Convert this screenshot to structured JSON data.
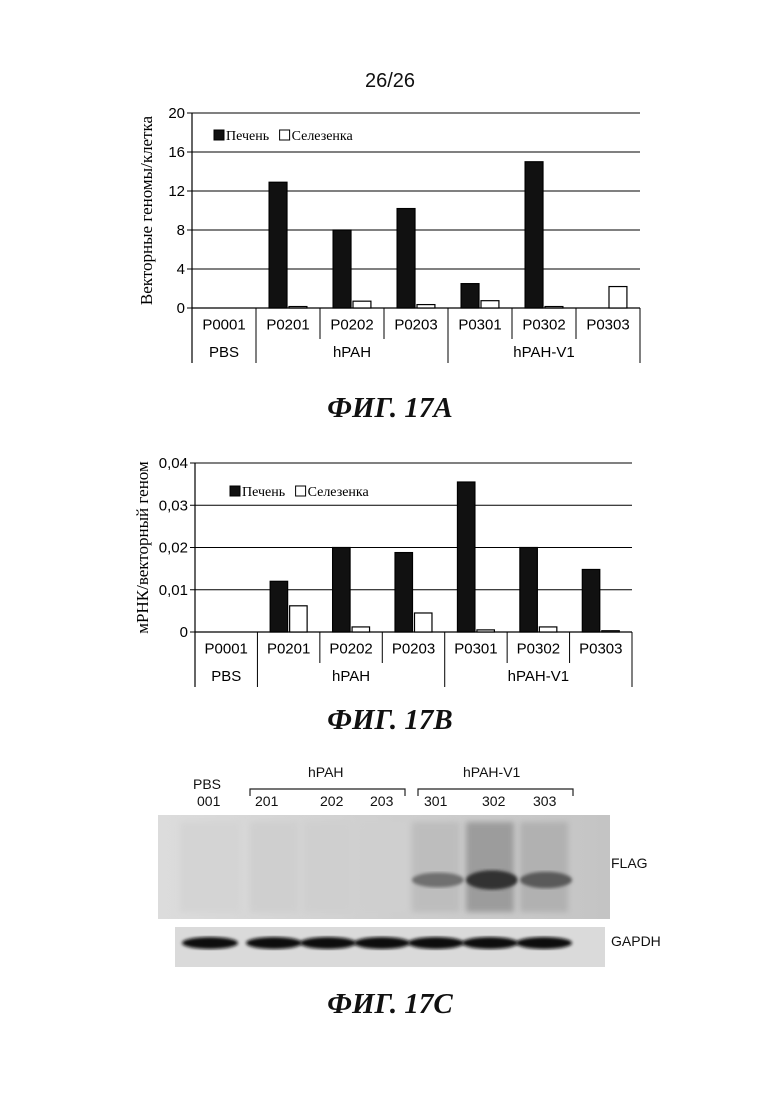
{
  "page_number": "26/26",
  "figures": {
    "a": {
      "caption": "ФИГ. 17А"
    },
    "b": {
      "caption": "ФИГ. 17В"
    },
    "c": {
      "caption": "ФИГ. 17С",
      "lane_header": {
        "pbs_line1": "PBS",
        "pbs_line2": "001",
        "group1": "hPAH",
        "group2": "hPAH-V1"
      },
      "lanes": [
        "201",
        "202",
        "203",
        "301",
        "302",
        "303"
      ],
      "bands": {
        "top_label": "FLAG",
        "bottom_label": "GAPDH"
      },
      "flag_intensity": [
        0.05,
        0.05,
        0.05,
        0.35,
        0.9,
        0.55
      ]
    }
  },
  "chart_data": [
    {
      "type": "bar",
      "ylabel": "Векторные геномы/клетка",
      "ylim": [
        0,
        20
      ],
      "yticks": [
        "0",
        "4",
        "8",
        "12",
        "16",
        "20"
      ],
      "grid": true,
      "legend_position": "top-left",
      "categories": [
        "P0001",
        "P0201",
        "P0202",
        "P0203",
        "P0301",
        "P0302",
        "P0303"
      ],
      "groups": [
        {
          "label": "PBS",
          "span": 1
        },
        {
          "label": "hPAH",
          "span": 3
        },
        {
          "label": "hPAH-V1",
          "span": 3
        }
      ],
      "series": [
        {
          "name": "Печень",
          "color": "#111111",
          "values": [
            0,
            12.9,
            8.0,
            10.2,
            2.5,
            15.0,
            0
          ]
        },
        {
          "name": "Селезенка",
          "color": "#ffffff",
          "values": [
            0,
            0.15,
            0.7,
            0.35,
            0.75,
            0.15,
            2.2
          ]
        }
      ]
    },
    {
      "type": "bar",
      "ylabel": "мРНК/векторный геном",
      "ylim": [
        0,
        0.04
      ],
      "yticks": [
        "0",
        "0,01",
        "0,02",
        "0,03",
        "0,04"
      ],
      "grid": true,
      "legend_position": "top-left",
      "categories": [
        "P0001",
        "P0201",
        "P0202",
        "P0203",
        "P0301",
        "P0302",
        "P0303"
      ],
      "groups": [
        {
          "label": "PBS",
          "span": 1
        },
        {
          "label": "hPAH",
          "span": 3
        },
        {
          "label": "hPAH-V1",
          "span": 3
        }
      ],
      "series": [
        {
          "name": "Печень",
          "color": "#111111",
          "values": [
            0,
            0.012,
            0.02,
            0.0188,
            0.0355,
            0.02,
            0.0148
          ]
        },
        {
          "name": "Селезенка",
          "color": "#ffffff",
          "values": [
            0,
            0.0062,
            0.0012,
            0.0045,
            0.0005,
            0.0012,
            0.0003
          ]
        }
      ]
    }
  ]
}
